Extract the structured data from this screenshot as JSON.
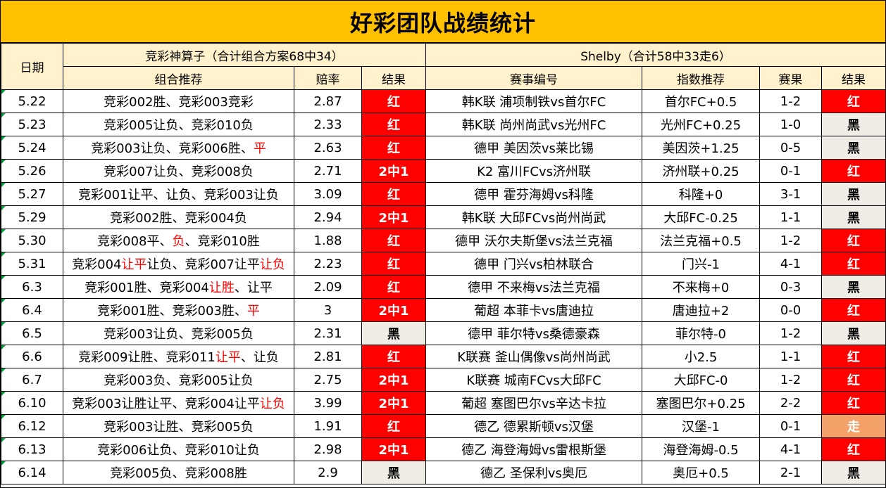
{
  "title": "好彩团队战绩统计",
  "header": {
    "date": "日期",
    "left_group": "竞彩神算子（合计组合方案68中34）",
    "right_group": "Shelby（合计58中33走6）",
    "combo": "组合推荐",
    "odds": "赔率",
    "result": "结果",
    "match": "赛事编号",
    "index": "指数推荐",
    "score": "赛果",
    "result2": "结果"
  },
  "colors": {
    "title_bg": "#ffc000",
    "header_bg": "#fff2cc",
    "red": "#ff0000",
    "black_cell": "#f0ede6",
    "walk": "#f4a16a",
    "highlight": "#ff0000"
  },
  "rows": [
    {
      "date": "5.22",
      "combo": [
        {
          "t": "竞彩002胜、竞彩003竞彩"
        }
      ],
      "odds": "2.87",
      "result": "红",
      "match": "韩K联 浦项制铁vs首尔FC",
      "index": "首尔FC+0.5",
      "score": "1-2",
      "result2": "红"
    },
    {
      "date": "5.23",
      "combo": [
        {
          "t": "竞彩005让负、竞彩010负"
        }
      ],
      "odds": "2.33",
      "result": "红",
      "match": "韩K联 尚州尚武vs光州FC",
      "index": "光州FC+0.25",
      "score": "1-0",
      "result2": "黑"
    },
    {
      "date": "5.24",
      "combo": [
        {
          "t": "竞彩003让负、竞彩006胜、"
        },
        {
          "t": "平",
          "hl": true
        }
      ],
      "odds": "2.63",
      "result": "红",
      "match": "德甲 美因茨vs莱比锡",
      "index": "美因茨+1.25",
      "score": "0-5",
      "result2": "黑"
    },
    {
      "date": "5.26",
      "combo": [
        {
          "t": "竞彩007让负、竞彩008负"
        }
      ],
      "odds": "2.71",
      "result": "2中1",
      "match": "K2 富川FCvs济州联",
      "index": "济州联+0.25",
      "score": "0-1",
      "result2": "红"
    },
    {
      "date": "5.27",
      "combo": [
        {
          "t": "竞彩001让平、让负、竞彩003让负"
        }
      ],
      "odds": "3.09",
      "result": "红",
      "match": "德甲 霍芬海姆vs科隆",
      "index": "科隆+0",
      "score": "3-1",
      "result2": "黑"
    },
    {
      "date": "5.29",
      "combo": [
        {
          "t": "竞彩002胜、竞彩004负"
        }
      ],
      "odds": "2.94",
      "result": "2中1",
      "match": "韩K联 大邱FCvs尚州尚武",
      "index": "大邱FC-0.25",
      "score": "1-1",
      "result2": "黑"
    },
    {
      "date": "5.30",
      "combo": [
        {
          "t": "竞彩008平、"
        },
        {
          "t": "负",
          "hl": true
        },
        {
          "t": "、竞彩010胜"
        }
      ],
      "odds": "1.88",
      "result": "红",
      "match": "德甲 沃尔夫斯堡vs法兰克福",
      "index": "法兰克福+0.5",
      "score": "1-2",
      "result2": "红"
    },
    {
      "date": "5.31",
      "combo": [
        {
          "t": "竞彩004"
        },
        {
          "t": "让平",
          "hl": true
        },
        {
          "t": "让负、竞彩007让平"
        },
        {
          "t": "让负",
          "hl": true
        }
      ],
      "odds": "2.23",
      "result": "红",
      "match": "德甲 门兴vs柏林联合",
      "index": "门兴-1",
      "score": "4-1",
      "result2": "红"
    },
    {
      "date": "6.3",
      "combo": [
        {
          "t": "竞彩001胜、竞彩004"
        },
        {
          "t": "让胜",
          "hl": true
        },
        {
          "t": "、让平"
        }
      ],
      "odds": "2.09",
      "result": "红",
      "match": "德甲 不来梅vs法兰克福",
      "index": "不来梅+0",
      "score": "0-3",
      "result2": "黑"
    },
    {
      "date": "6.4",
      "combo": [
        {
          "t": "竞彩001胜、竞彩003胜、"
        },
        {
          "t": "平",
          "hl": true
        }
      ],
      "odds": "3",
      "result": "2中1",
      "match": "葡超 本菲卡vs唐迪拉",
      "index": "唐迪拉+2",
      "score": "0-0",
      "result2": "红"
    },
    {
      "date": "6.5",
      "combo": [
        {
          "t": "竞彩003让负、竞彩005负"
        }
      ],
      "odds": "2.31",
      "result": "黑",
      "match": "德甲 菲尔特vs桑德豪森",
      "index": "菲尔特-0",
      "score": "1-2",
      "result2": "黑"
    },
    {
      "date": "6.6",
      "combo": [
        {
          "t": "竞彩009让胜、竞彩011"
        },
        {
          "t": "让平",
          "hl": true
        },
        {
          "t": "、让负"
        }
      ],
      "odds": "2.81",
      "result": "红",
      "match": "K联赛 釜山偶像vs尚州尚武",
      "index": "小2.5",
      "score": "1-1",
      "result2": "红"
    },
    {
      "date": "6.7",
      "combo": [
        {
          "t": "竞彩003负、竞彩005让负"
        }
      ],
      "odds": "2.75",
      "result": "2中1",
      "match": "K联赛 城南FCvs大邱FC",
      "index": "大邱FC-0",
      "score": "1-2",
      "result2": "红"
    },
    {
      "date": "6.10",
      "combo": [
        {
          "t": "竞彩003让胜让平、竞彩004让平"
        },
        {
          "t": "让负",
          "hl": true
        }
      ],
      "odds": "3.99",
      "result": "2中1",
      "match": "葡超 塞图巴尔vs辛达卡拉",
      "index": "塞图巴尔+0.25",
      "score": "2-2",
      "result2": "红"
    },
    {
      "date": "6.12",
      "combo": [
        {
          "t": "竞彩003让胜、竞彩005负"
        }
      ],
      "odds": "1.91",
      "result": "红",
      "match": "德乙 德累斯顿vs汉堡",
      "index": "汉堡-1",
      "score": "0-1",
      "result2": "走"
    },
    {
      "date": "6.13",
      "combo": [
        {
          "t": "竞彩006让负、竞彩010让负"
        }
      ],
      "odds": "2.98",
      "result": "2中1",
      "match": "德乙 海登海姆vs雷根斯堡",
      "index": "海登海姆-0.5",
      "score": "4-1",
      "result2": "红"
    },
    {
      "date": "6.14",
      "combo": [
        {
          "t": "竞彩005负、竞彩008胜"
        }
      ],
      "odds": "2.9",
      "result": "黑",
      "match": "德乙 圣保利vs奥厄",
      "index": "奥厄+0.5",
      "score": "2-1",
      "result2": "黑"
    }
  ]
}
